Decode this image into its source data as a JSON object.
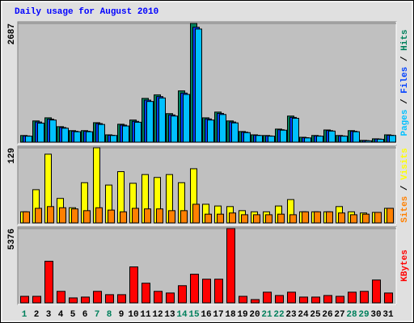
{
  "chart_data": [
    {
      "type": "bar",
      "title": "Daily usage for August 2010",
      "categories": [
        "1",
        "2",
        "3",
        "4",
        "5",
        "6",
        "7",
        "8",
        "9",
        "10",
        "11",
        "12",
        "13",
        "14",
        "15",
        "16",
        "17",
        "18",
        "19",
        "20",
        "21",
        "22",
        "23",
        "24",
        "25",
        "26",
        "27",
        "28",
        "29",
        "30",
        "31"
      ],
      "category_colors": [
        "#00805c",
        "#000000",
        "#000000",
        "#000000",
        "#000000",
        "#000000",
        "#00805c",
        "#00805c",
        "#000000",
        "#000000",
        "#000000",
        "#000000",
        "#000000",
        "#00805c",
        "#00805c",
        "#000000",
        "#000000",
        "#000000",
        "#000000",
        "#000000",
        "#00805c",
        "#00805c",
        "#000000",
        "#000000",
        "#000000",
        "#000000",
        "#000000",
        "#00805c",
        "#00805c",
        "#000000",
        "#000000"
      ],
      "legend_separator": " / ",
      "ylim": [
        0,
        2687
      ],
      "yticks": [
        2687
      ],
      "series": [
        {
          "name": "Hits",
          "color": "#00805c",
          "values": [
            150,
            480,
            550,
            350,
            260,
            260,
            440,
            165,
            405,
            500,
            990,
            1070,
            645,
            1160,
            2687,
            550,
            680,
            480,
            240,
            165,
            150,
            295,
            590,
            110,
            150,
            275,
            150,
            260,
            40,
            75,
            165
          ]
        },
        {
          "name": "Files",
          "color": "#0040ff",
          "values": [
            140,
            455,
            520,
            330,
            245,
            245,
            420,
            155,
            385,
            470,
            950,
            1030,
            615,
            1110,
            2600,
            525,
            650,
            455,
            225,
            155,
            140,
            280,
            560,
            100,
            140,
            260,
            140,
            245,
            35,
            70,
            155
          ]
        },
        {
          "name": "Pages",
          "color": "#00c0ff",
          "values": [
            135,
            430,
            500,
            315,
            235,
            235,
            400,
            150,
            365,
            450,
            920,
            1000,
            590,
            1080,
            2560,
            500,
            625,
            435,
            215,
            150,
            135,
            270,
            540,
            95,
            135,
            250,
            135,
            235,
            30,
            65,
            150
          ]
        }
      ]
    },
    {
      "type": "bar",
      "ylim": [
        0,
        129
      ],
      "yticks": [
        129
      ],
      "series": [
        {
          "name": "Visits",
          "color": "#ffff00",
          "values": [
            19,
            57,
            118,
            42,
            26,
            69,
            129,
            65,
            88,
            68,
            83,
            78,
            83,
            69,
            93,
            32,
            29,
            28,
            21,
            19,
            19,
            29,
            40,
            19,
            19,
            19,
            28,
            19,
            17,
            18,
            25
          ]
        },
        {
          "name": "Sites",
          "color": "#ff8000",
          "values": [
            19,
            25,
            28,
            26,
            24,
            21,
            26,
            22,
            19,
            25,
            24,
            24,
            21,
            21,
            32,
            15,
            15,
            17,
            14,
            14,
            14,
            15,
            14,
            19,
            19,
            19,
            17,
            14,
            15,
            18,
            25
          ]
        }
      ]
    },
    {
      "type": "bar",
      "ylim": [
        0,
        5376
      ],
      "yticks": [
        5376
      ],
      "series": [
        {
          "name": "KBytes",
          "color": "#ff0000",
          "values": [
            470,
            470,
            3010,
            830,
            355,
            415,
            830,
            590,
            590,
            2600,
            1420,
            830,
            710,
            1240,
            2070,
            1710,
            1710,
            5376,
            470,
            235,
            770,
            530,
            770,
            415,
            415,
            530,
            470,
            770,
            830,
            1650,
            710
          ]
        }
      ]
    }
  ]
}
